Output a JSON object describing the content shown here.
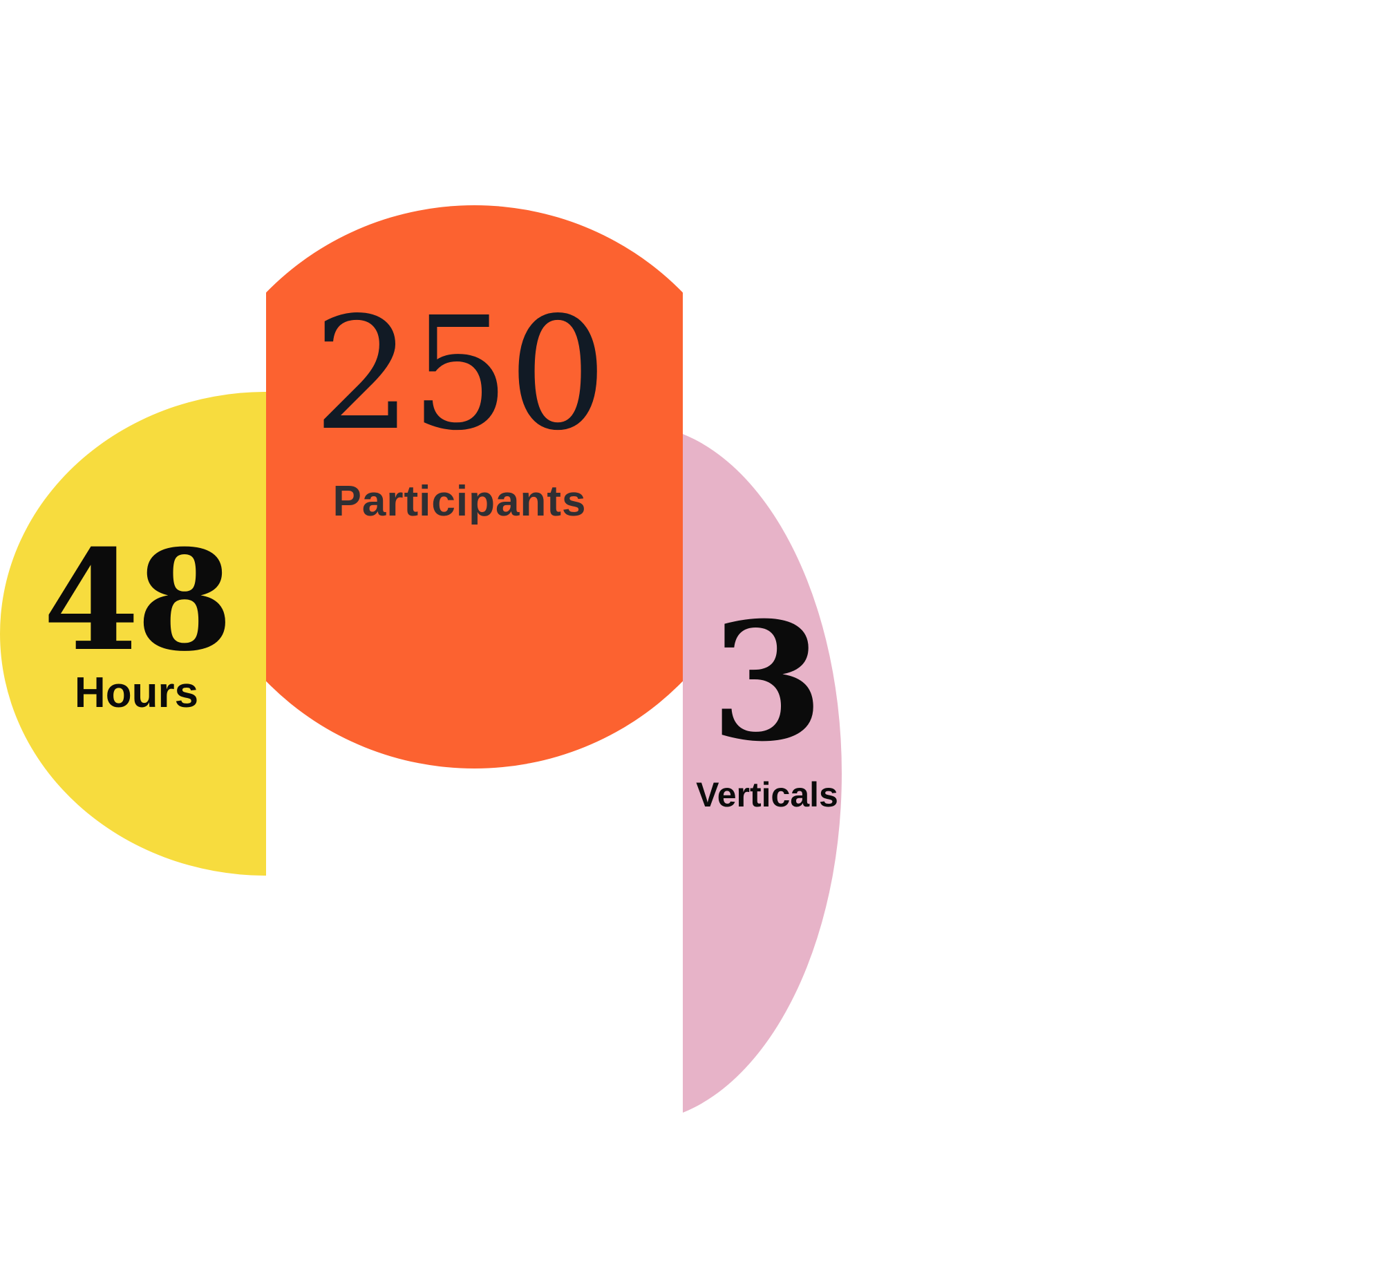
{
  "colors": {
    "background": "#ffffff",
    "yellow": "#f7dc3e",
    "orange": "#fc6230",
    "pink": "#e7b3c8",
    "text_dark": "#0b0b0b",
    "text_navy": "#111a25",
    "text_gray": "#2f2f33"
  },
  "stats": {
    "hours": {
      "number": "48",
      "label": "Hours"
    },
    "participants": {
      "number": "250",
      "label": "Participants"
    },
    "verticals": {
      "number": "3",
      "label": "Verticals"
    }
  }
}
